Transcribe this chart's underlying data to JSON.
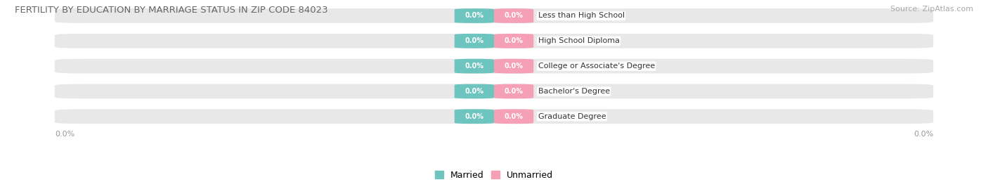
{
  "title": "FERTILITY BY EDUCATION BY MARRIAGE STATUS IN ZIP CODE 84023",
  "source": "Source: ZipAtlas.com",
  "categories": [
    "Less than High School",
    "High School Diploma",
    "College or Associate's Degree",
    "Bachelor's Degree",
    "Graduate Degree"
  ],
  "married_values": [
    0.0,
    0.0,
    0.0,
    0.0,
    0.0
  ],
  "unmarried_values": [
    0.0,
    0.0,
    0.0,
    0.0,
    0.0
  ],
  "married_color": "#6ec4bf",
  "unmarried_color": "#f5a0b5",
  "row_bg_color": "#e8e8e8",
  "title_color": "#666666",
  "value_label_color": "#ffffff",
  "category_label_color": "#333333",
  "axis_label_color": "#999999",
  "legend_married": "Married",
  "legend_unmarried": "Unmarried",
  "fig_width": 14.06,
  "fig_height": 2.69
}
